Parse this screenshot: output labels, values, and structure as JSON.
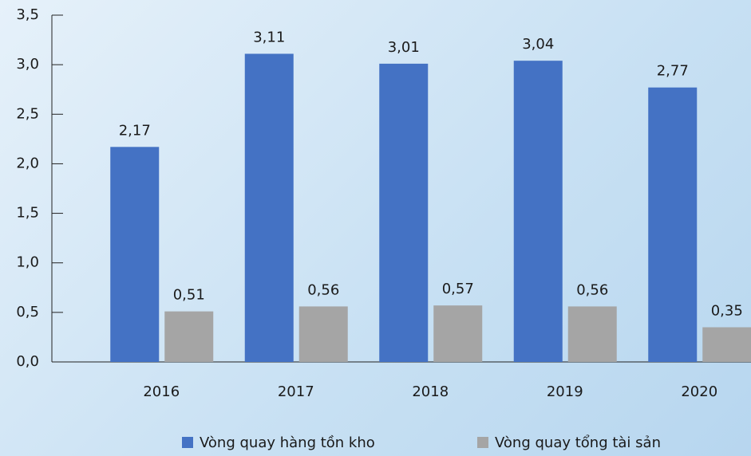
{
  "chart_data": {
    "type": "bar",
    "categories": [
      "2016",
      "2017",
      "2018",
      "2019",
      "2020"
    ],
    "series": [
      {
        "name": "Vòng quay hàng tồn kho",
        "color": "#4472c4",
        "values": [
          2.17,
          3.11,
          3.01,
          3.04,
          2.77
        ],
        "value_labels": [
          "2,17",
          "3,11",
          "3,01",
          "3,04",
          "2,77"
        ]
      },
      {
        "name": "Vòng quay tổng tài sản",
        "color": "#a5a5a5",
        "values": [
          0.51,
          0.56,
          0.57,
          0.56,
          0.35
        ],
        "value_labels": [
          "0,51",
          "0,56",
          "0,57",
          "0,56",
          "0,35"
        ]
      }
    ],
    "ylim": [
      0,
      3.5
    ],
    "yticks": [
      {
        "value": 0,
        "label": "0,0"
      },
      {
        "value": 0.5,
        "label": "0,5"
      },
      {
        "value": 1,
        "label": "1,0"
      },
      {
        "value": 1.5,
        "label": "1,5"
      },
      {
        "value": 2,
        "label": "2,0"
      },
      {
        "value": 2.5,
        "label": "2,5"
      },
      {
        "value": 3,
        "label": "3,0"
      },
      {
        "value": 3.5,
        "label": "3,5"
      }
    ],
    "legend": "bottom"
  }
}
